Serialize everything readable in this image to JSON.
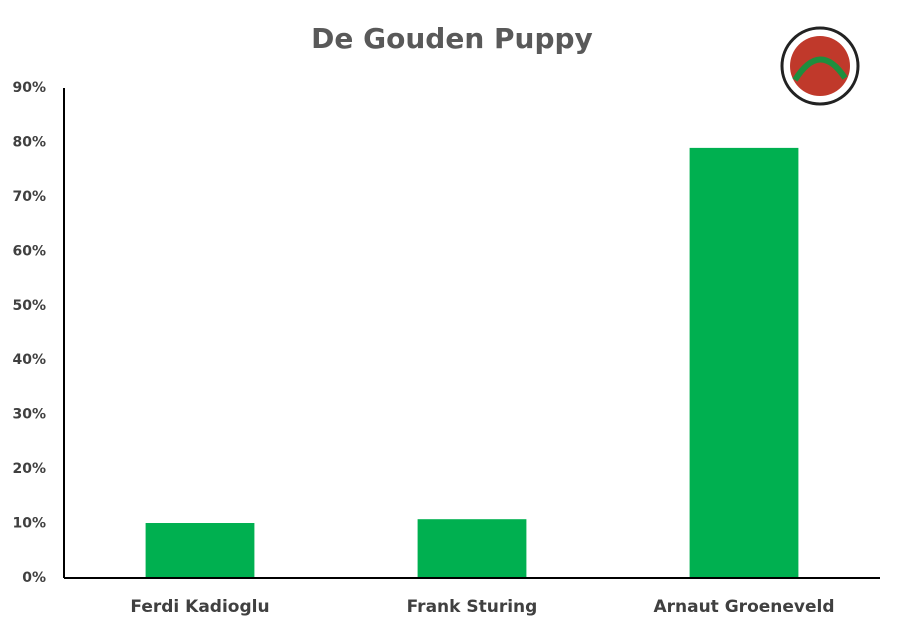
{
  "chart_data": {
    "type": "bar",
    "title": "De Gouden Puppy",
    "categories": [
      "Ferdi Kadioglu",
      "Frank Sturing",
      "Arnaut Groeneveld"
    ],
    "values": [
      10.1,
      10.8,
      79
    ],
    "color": "#00b050",
    "ylim": [
      0,
      90
    ],
    "yticks": [
      {
        "value": 0,
        "label": "0%"
      },
      {
        "value": 10,
        "label": "10%"
      },
      {
        "value": 20,
        "label": "20%"
      },
      {
        "value": 30,
        "label": "30%"
      },
      {
        "value": 40,
        "label": "40%"
      },
      {
        "value": 50,
        "label": "50%"
      },
      {
        "value": 60,
        "label": "60%"
      },
      {
        "value": 70,
        "label": "70%"
      },
      {
        "value": 80,
        "label": "80%"
      },
      {
        "value": 90,
        "label": "90%"
      }
    ],
    "grid": false
  }
}
